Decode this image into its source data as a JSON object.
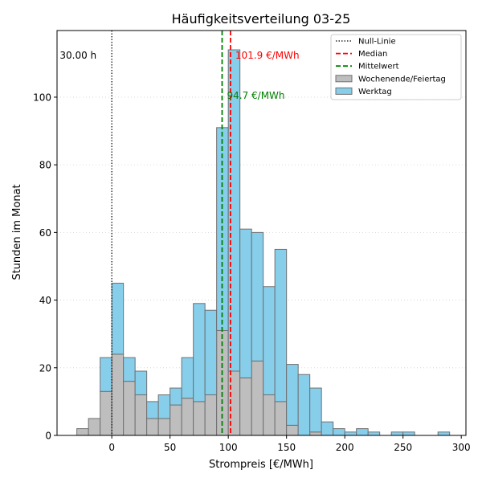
{
  "chart_data": {
    "type": "bar",
    "title": "Häufigkeitsverteilung 03-25",
    "xlabel": "Strompreis [€/MWh]",
    "ylabel": "Stunden im Monat",
    "xlim": [
      -47,
      304
    ],
    "ylim": [
      0,
      119.7
    ],
    "xticks": [
      0,
      50,
      100,
      150,
      200,
      250,
      300
    ],
    "yticks": [
      0,
      20,
      40,
      60,
      80,
      100
    ],
    "grid": "horizontal-dotted",
    "legend_position": "top-right",
    "bin_edges": [
      -30,
      -20,
      -10,
      0,
      10,
      20,
      30,
      40,
      50,
      60,
      70,
      80,
      90,
      100,
      110,
      120,
      130,
      140,
      150,
      160,
      170,
      180,
      190,
      200,
      210,
      220,
      230,
      240,
      250,
      260,
      270,
      280,
      290
    ],
    "series": [
      {
        "name": "Wochenende/Feiertag",
        "color": "#bebebe",
        "values": [
          2,
          5,
          13,
          24,
          16,
          12,
          5,
          5,
          9,
          11,
          10,
          12,
          31,
          19,
          17,
          22,
          12,
          10,
          3,
          0,
          1,
          0,
          0,
          0,
          0,
          0,
          0,
          0,
          0,
          0,
          0,
          0
        ]
      },
      {
        "name": "Werktag",
        "color": "#87ceeb",
        "values": [
          0,
          0,
          10,
          21,
          7,
          7,
          5,
          7,
          5,
          12,
          29,
          25,
          60,
          95,
          44,
          38,
          32,
          45,
          18,
          18,
          13,
          4,
          2,
          1,
          2,
          1,
          0,
          1,
          1,
          0,
          0,
          1
        ]
      }
    ],
    "reference_lines": [
      {
        "name": "Null-Linie",
        "x": 0,
        "color": "#000000",
        "style": "dotted",
        "label": "30.00 h"
      },
      {
        "name": "Median",
        "x": 101.9,
        "color": "#ff0000",
        "style": "dashed",
        "label": "101.9 €/MWh"
      },
      {
        "name": "Mittelwert",
        "x": 94.7,
        "color": "#008000",
        "style": "dashed",
        "label": "94.7 €/MWh"
      }
    ],
    "legend": [
      {
        "name": "Null-Linie",
        "kind": "line",
        "color": "#000000",
        "style": "dotted"
      },
      {
        "name": "Median",
        "kind": "line",
        "color": "#ff0000",
        "style": "dashed"
      },
      {
        "name": "Mittelwert",
        "kind": "line",
        "color": "#008000",
        "style": "dashed"
      },
      {
        "name": "Wochenende/Feiertag",
        "kind": "patch",
        "color": "#bebebe"
      },
      {
        "name": "Werktag",
        "kind": "patch",
        "color": "#87ceeb"
      }
    ]
  }
}
